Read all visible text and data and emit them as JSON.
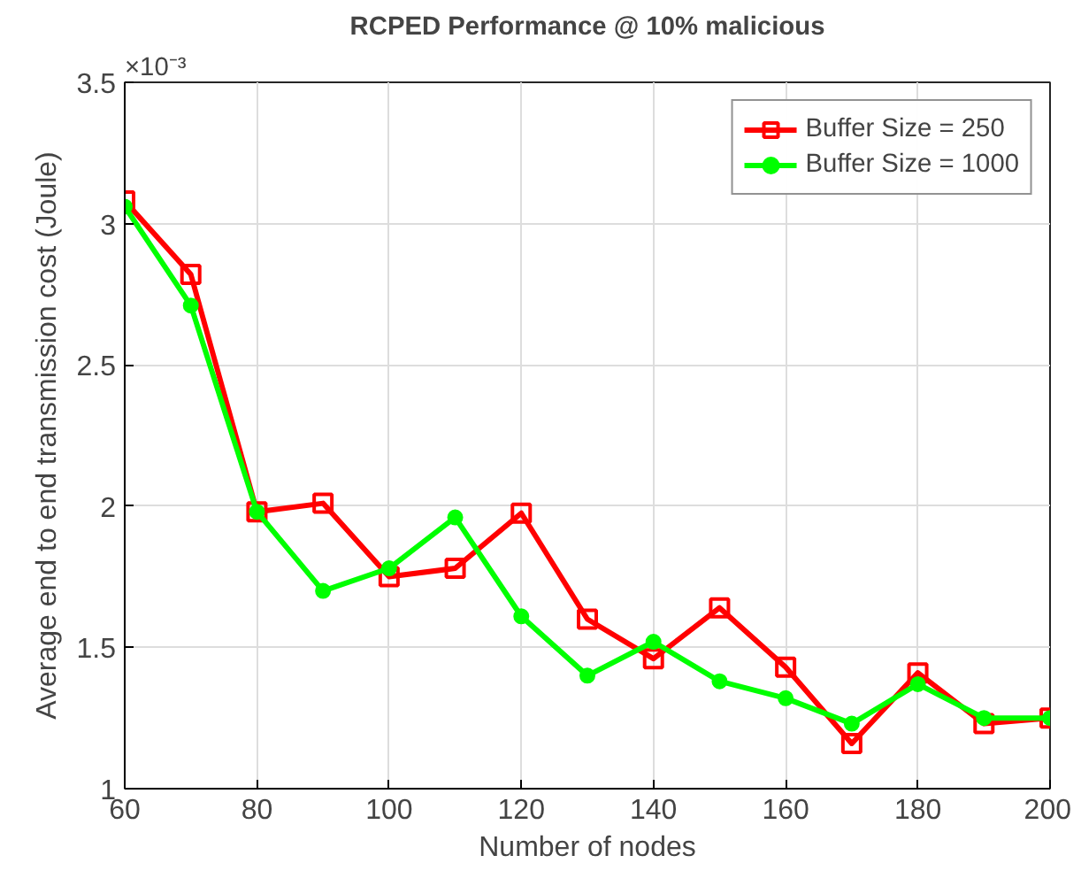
{
  "chart_data": {
    "type": "line",
    "title": "RCPED Performance @ 10% malicious",
    "xlabel": "Number of nodes",
    "ylabel": "Average end to end transmission cost (Joule)",
    "annotations": [
      "×10⁻³"
    ],
    "x": [
      60,
      70,
      80,
      90,
      100,
      110,
      120,
      130,
      140,
      150,
      160,
      170,
      180,
      190,
      200
    ],
    "series": [
      {
        "name": "Buffer Size = 250",
        "color": "#ff0000",
        "marker": "square",
        "values": [
          3.08,
          2.82,
          1.98,
          2.01,
          1.75,
          1.78,
          1.975,
          1.6,
          1.46,
          1.64,
          1.43,
          1.16,
          1.41,
          1.23,
          1.25
        ]
      },
      {
        "name": "Buffer Size = 1000",
        "color": "#00ff00",
        "marker": "circle",
        "values": [
          3.06,
          2.71,
          1.98,
          1.7,
          1.78,
          1.96,
          1.61,
          1.4,
          1.52,
          1.38,
          1.32,
          1.23,
          1.37,
          1.25,
          1.25
        ]
      }
    ],
    "xlim": [
      60,
      200
    ],
    "xticks": [
      60,
      80,
      100,
      120,
      140,
      160,
      180,
      200
    ],
    "ylim": [
      1,
      3.5
    ],
    "yticks": [
      1,
      1.5,
      2,
      2.5,
      3,
      3.5
    ],
    "grid": true,
    "legend": "top right",
    "line_style": "solid"
  }
}
